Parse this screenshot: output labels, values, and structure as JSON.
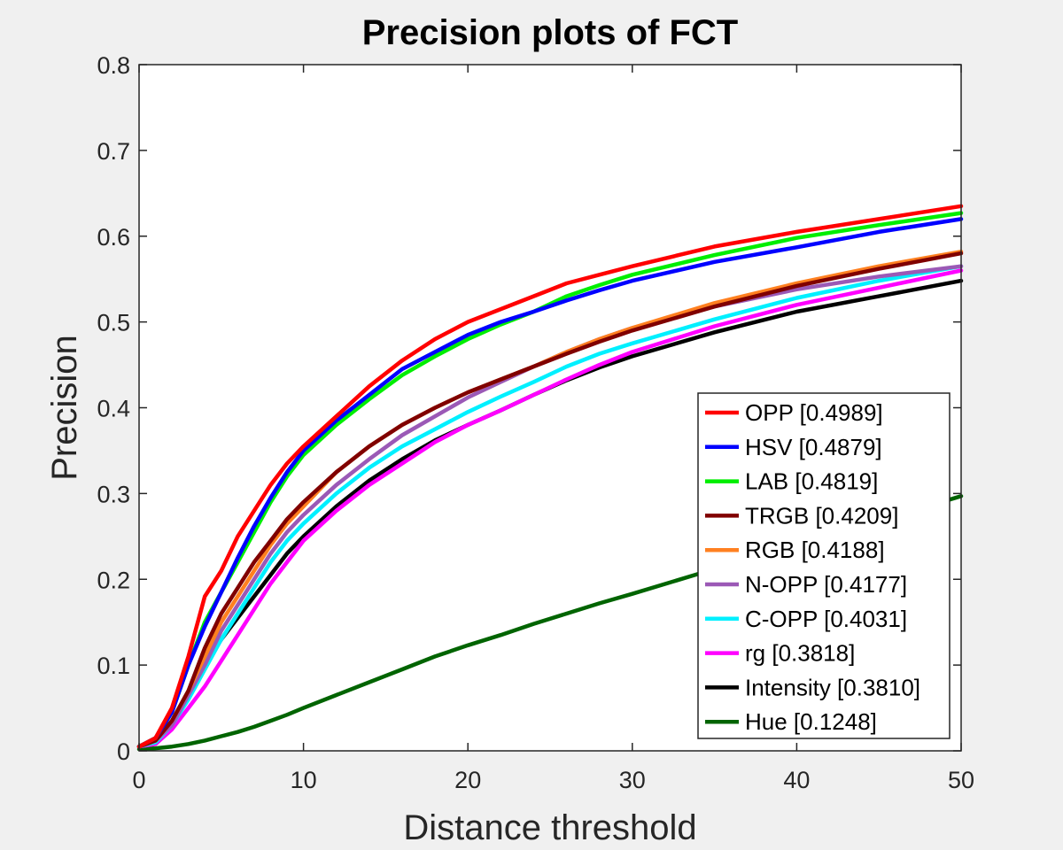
{
  "chart_data": {
    "type": "line",
    "title": "Precision plots of FCT",
    "xlabel": "Distance threshold",
    "ylabel": "Precision",
    "xlim": [
      0,
      50
    ],
    "ylim": [
      0,
      0.8
    ],
    "xticks": [
      0,
      10,
      20,
      30,
      40,
      50
    ],
    "xtick_labels": [
      "0",
      "10",
      "20",
      "30",
      "40",
      "50"
    ],
    "yticks": [
      0,
      0.1,
      0.2,
      0.3,
      0.4,
      0.5,
      0.6,
      0.7,
      0.8
    ],
    "ytick_labels": [
      "0",
      "0.1",
      "0.2",
      "0.3",
      "0.4",
      "0.5",
      "0.6",
      "0.7",
      "0.8"
    ],
    "grid": false,
    "legend_position": "bottom-right",
    "x": [
      0,
      1,
      2,
      3,
      4,
      5,
      6,
      7,
      8,
      9,
      10,
      12,
      14,
      16,
      18,
      20,
      22,
      24,
      26,
      28,
      30,
      35,
      40,
      45,
      50
    ],
    "series": [
      {
        "name": "OPP [0.4989]",
        "color": "#ff0000",
        "values": [
          0.005,
          0.015,
          0.05,
          0.11,
          0.18,
          0.21,
          0.25,
          0.28,
          0.31,
          0.335,
          0.355,
          0.39,
          0.425,
          0.455,
          0.48,
          0.5,
          0.515,
          0.53,
          0.545,
          0.555,
          0.565,
          0.588,
          0.605,
          0.62,
          0.635
        ]
      },
      {
        "name": "HSV [0.4879]",
        "color": "#0000ff",
        "values": [
          0.005,
          0.015,
          0.045,
          0.1,
          0.145,
          0.185,
          0.225,
          0.262,
          0.295,
          0.325,
          0.35,
          0.385,
          0.415,
          0.445,
          0.465,
          0.485,
          0.5,
          0.512,
          0.525,
          0.537,
          0.548,
          0.57,
          0.587,
          0.605,
          0.62
        ]
      },
      {
        "name": "LAB [0.4819]",
        "color": "#00ee00",
        "values": [
          0.005,
          0.015,
          0.045,
          0.1,
          0.15,
          0.185,
          0.22,
          0.255,
          0.29,
          0.32,
          0.345,
          0.38,
          0.41,
          0.438,
          0.46,
          0.48,
          0.497,
          0.512,
          0.53,
          0.543,
          0.555,
          0.578,
          0.598,
          0.613,
          0.627
        ]
      },
      {
        "name": "TRGB [0.4209]",
        "color": "#800000",
        "values": [
          0.005,
          0.012,
          0.035,
          0.07,
          0.12,
          0.16,
          0.19,
          0.22,
          0.245,
          0.27,
          0.29,
          0.325,
          0.355,
          0.38,
          0.4,
          0.418,
          0.433,
          0.448,
          0.463,
          0.477,
          0.49,
          0.518,
          0.542,
          0.562,
          0.58
        ]
      },
      {
        "name": "RGB [0.4188]",
        "color": "#ff8020",
        "values": [
          0.005,
          0.012,
          0.035,
          0.07,
          0.11,
          0.15,
          0.18,
          0.21,
          0.24,
          0.265,
          0.285,
          0.325,
          0.355,
          0.38,
          0.4,
          0.418,
          0.433,
          0.448,
          0.465,
          0.48,
          0.493,
          0.522,
          0.545,
          0.565,
          0.582
        ]
      },
      {
        "name": "N-OPP [0.4177]",
        "color": "#9b59b6",
        "values": [
          0.005,
          0.012,
          0.03,
          0.065,
          0.1,
          0.14,
          0.17,
          0.2,
          0.23,
          0.255,
          0.275,
          0.31,
          0.34,
          0.368,
          0.39,
          0.412,
          0.43,
          0.448,
          0.465,
          0.48,
          0.493,
          0.518,
          0.538,
          0.553,
          0.565
        ]
      },
      {
        "name": "C-OPP [0.4031]",
        "color": "#00f0ff",
        "values": [
          0.005,
          0.01,
          0.03,
          0.06,
          0.095,
          0.13,
          0.16,
          0.19,
          0.22,
          0.245,
          0.265,
          0.3,
          0.33,
          0.355,
          0.375,
          0.395,
          0.413,
          0.43,
          0.448,
          0.463,
          0.475,
          0.503,
          0.528,
          0.548,
          0.565
        ]
      },
      {
        "name": "rg [0.3818]",
        "color": "#ff00ff",
        "values": [
          0.005,
          0.008,
          0.025,
          0.05,
          0.075,
          0.105,
          0.135,
          0.165,
          0.195,
          0.22,
          0.245,
          0.28,
          0.31,
          0.335,
          0.36,
          0.38,
          0.397,
          0.415,
          0.433,
          0.45,
          0.465,
          0.495,
          0.52,
          0.54,
          0.56
        ]
      },
      {
        "name": "Intensity [0.3810]",
        "color": "#000000",
        "values": [
          0.005,
          0.012,
          0.035,
          0.065,
          0.1,
          0.13,
          0.155,
          0.18,
          0.205,
          0.23,
          0.25,
          0.285,
          0.315,
          0.34,
          0.362,
          0.38,
          0.397,
          0.415,
          0.432,
          0.447,
          0.46,
          0.488,
          0.512,
          0.53,
          0.548
        ]
      },
      {
        "name": "Hue [0.1248]",
        "color": "#006400",
        "values": [
          0.002,
          0.003,
          0.005,
          0.008,
          0.012,
          0.017,
          0.022,
          0.028,
          0.035,
          0.042,
          0.05,
          0.065,
          0.08,
          0.095,
          0.11,
          0.123,
          0.135,
          0.148,
          0.16,
          0.172,
          0.183,
          0.212,
          0.24,
          0.268,
          0.297
        ]
      }
    ]
  }
}
